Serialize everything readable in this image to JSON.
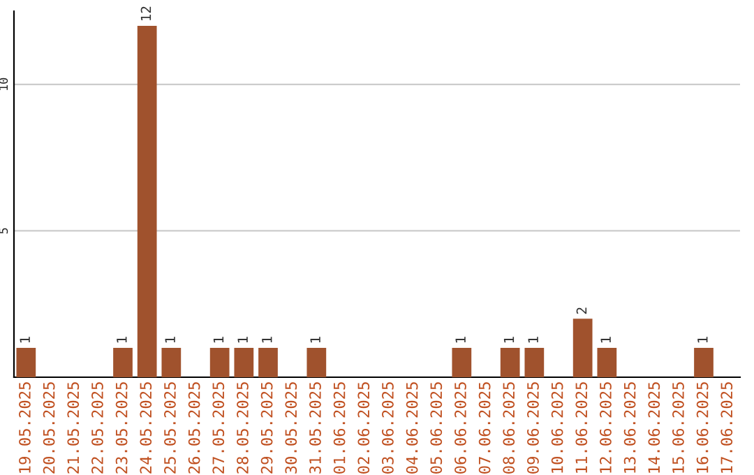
{
  "chart_data": {
    "type": "bar",
    "categories": [
      "19.05.2025",
      "20.05.2025",
      "21.05.2025",
      "22.05.2025",
      "23.05.2025",
      "24.05.2025",
      "25.05.2025",
      "26.05.2025",
      "27.05.2025",
      "28.05.2025",
      "29.05.2025",
      "30.05.2025",
      "31.05.2025",
      "01.06.2025",
      "02.06.2025",
      "03.06.2025",
      "04.06.2025",
      "05.06.2025",
      "06.06.2025",
      "07.06.2025",
      "08.06.2025",
      "09.06.2025",
      "10.06.2025",
      "11.06.2025",
      "12.06.2025",
      "13.06.2025",
      "14.06.2025",
      "15.06.2025",
      "16.06.2025",
      "17.06.2025"
    ],
    "values": [
      1,
      0,
      0,
      0,
      1,
      12,
      1,
      0,
      1,
      1,
      1,
      0,
      1,
      0,
      0,
      0,
      0,
      0,
      1,
      0,
      1,
      1,
      0,
      2,
      1,
      0,
      0,
      0,
      1,
      0
    ],
    "value_labels": [
      "1",
      null,
      null,
      null,
      "1",
      "12",
      "1",
      null,
      "1",
      "1",
      "1",
      null,
      "1",
      null,
      null,
      null,
      null,
      null,
      "1",
      null,
      "1",
      "1",
      null,
      "2",
      "1",
      null,
      null,
      null,
      "1",
      null
    ],
    "color": "#a0522d",
    "ylim": [
      0,
      12.5
    ],
    "yticks": [
      5,
      10
    ],
    "grid": "y"
  }
}
